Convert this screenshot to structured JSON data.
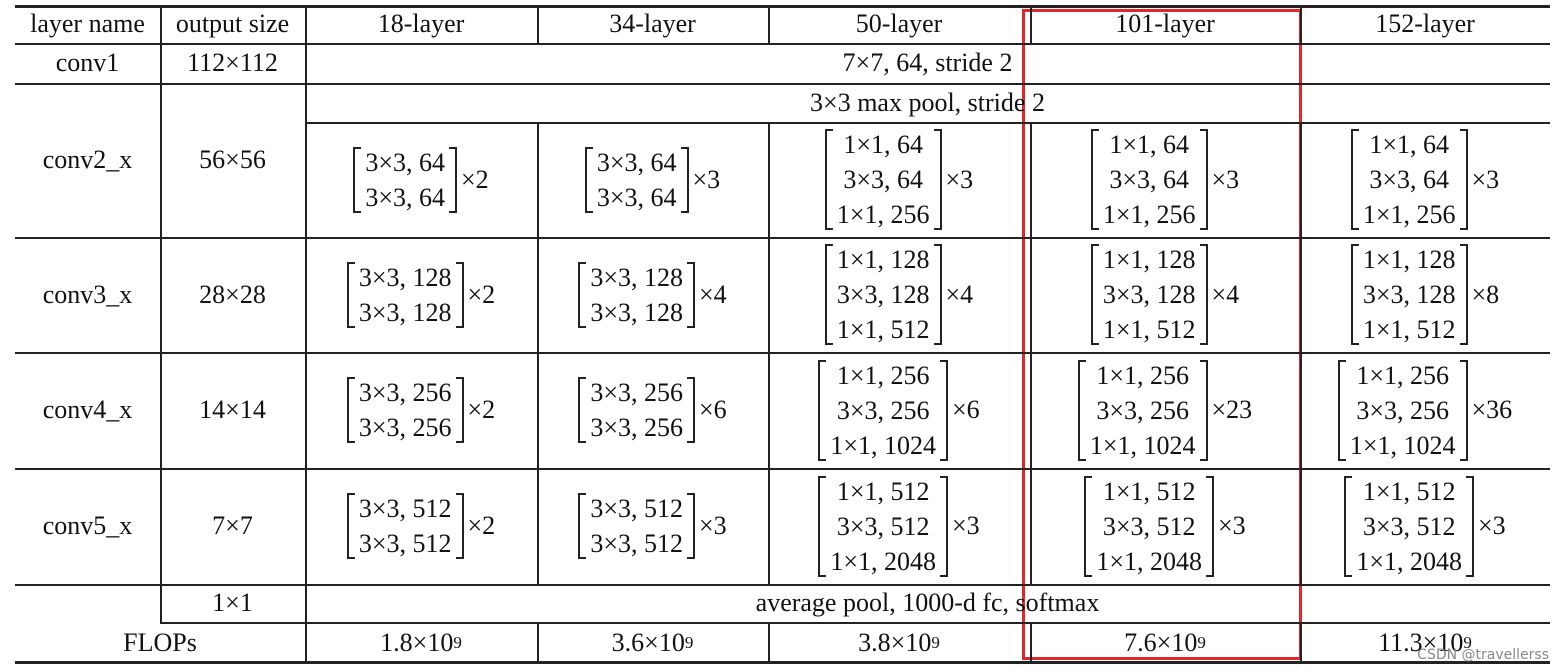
{
  "header": [
    "layer name",
    "output size",
    "18-layer",
    "34-layer",
    "50-layer",
    "101-layer",
    "152-layer"
  ],
  "conv1": {
    "name": "conv1",
    "size": "112×112",
    "spec": "7×7, 64, stride 2"
  },
  "pool": {
    "spec": "3×3 max pool, stride 2"
  },
  "rows": [
    {
      "name": "conv2_x",
      "size": "56×56",
      "blocks": [
        {
          "layers": [
            "3×3, 64",
            "3×3, 64"
          ],
          "times": "×2"
        },
        {
          "layers": [
            "3×3, 64",
            "3×3, 64"
          ],
          "times": "×3"
        },
        {
          "layers": [
            "1×1, 64",
            "3×3, 64",
            "1×1, 256"
          ],
          "times": "×3"
        },
        {
          "layers": [
            "1×1, 64",
            "3×3, 64",
            "1×1, 256"
          ],
          "times": "×3"
        },
        {
          "layers": [
            "1×1, 64",
            "3×3, 64",
            "1×1, 256"
          ],
          "times": "×3"
        }
      ]
    },
    {
      "name": "conv3_x",
      "size": "28×28",
      "blocks": [
        {
          "layers": [
            "3×3, 128",
            "3×3, 128"
          ],
          "times": "×2"
        },
        {
          "layers": [
            "3×3, 128",
            "3×3, 128"
          ],
          "times": "×4"
        },
        {
          "layers": [
            "1×1, 128",
            "3×3, 128",
            "1×1, 512"
          ],
          "times": "×4"
        },
        {
          "layers": [
            "1×1, 128",
            "3×3, 128",
            "1×1, 512"
          ],
          "times": "×4"
        },
        {
          "layers": [
            "1×1, 128",
            "3×3, 128",
            "1×1, 512"
          ],
          "times": "×8"
        }
      ]
    },
    {
      "name": "conv4_x",
      "size": "14×14",
      "blocks": [
        {
          "layers": [
            "3×3, 256",
            "3×3, 256"
          ],
          "times": "×2"
        },
        {
          "layers": [
            "3×3, 256",
            "3×3, 256"
          ],
          "times": "×6"
        },
        {
          "layers": [
            "1×1, 256",
            "3×3, 256",
            "1×1, 1024"
          ],
          "times": "×6"
        },
        {
          "layers": [
            "1×1, 256",
            "3×3, 256",
            "1×1, 1024"
          ],
          "times": "×23"
        },
        {
          "layers": [
            "1×1, 256",
            "3×3, 256",
            "1×1, 1024"
          ],
          "times": "×36"
        }
      ]
    },
    {
      "name": "conv5_x",
      "size": "7×7",
      "blocks": [
        {
          "layers": [
            "3×3, 512",
            "3×3, 512"
          ],
          "times": "×2"
        },
        {
          "layers": [
            "3×3, 512",
            "3×3, 512"
          ],
          "times": "×3"
        },
        {
          "layers": [
            "1×1, 512",
            "3×3, 512",
            "1×1, 2048"
          ],
          "times": "×3"
        },
        {
          "layers": [
            "1×1, 512",
            "3×3, 512",
            "1×1, 2048"
          ],
          "times": "×3"
        },
        {
          "layers": [
            "1×1, 512",
            "3×3, 512",
            "1×1, 2048"
          ],
          "times": "×3"
        }
      ]
    }
  ],
  "final": {
    "size": "1×1",
    "spec": "average pool, 1000-d fc, softmax"
  },
  "flops": {
    "name": "FLOPs",
    "values": [
      {
        "base": "1.8×10",
        "exp": "9"
      },
      {
        "base": "3.6×10",
        "exp": "9"
      },
      {
        "base": "3.8×10",
        "exp": "9"
      },
      {
        "base": "7.6×10",
        "exp": "9"
      },
      {
        "base": "11.3×10",
        "exp": "9"
      }
    ]
  },
  "watermark": "CSDN @travellerss"
}
